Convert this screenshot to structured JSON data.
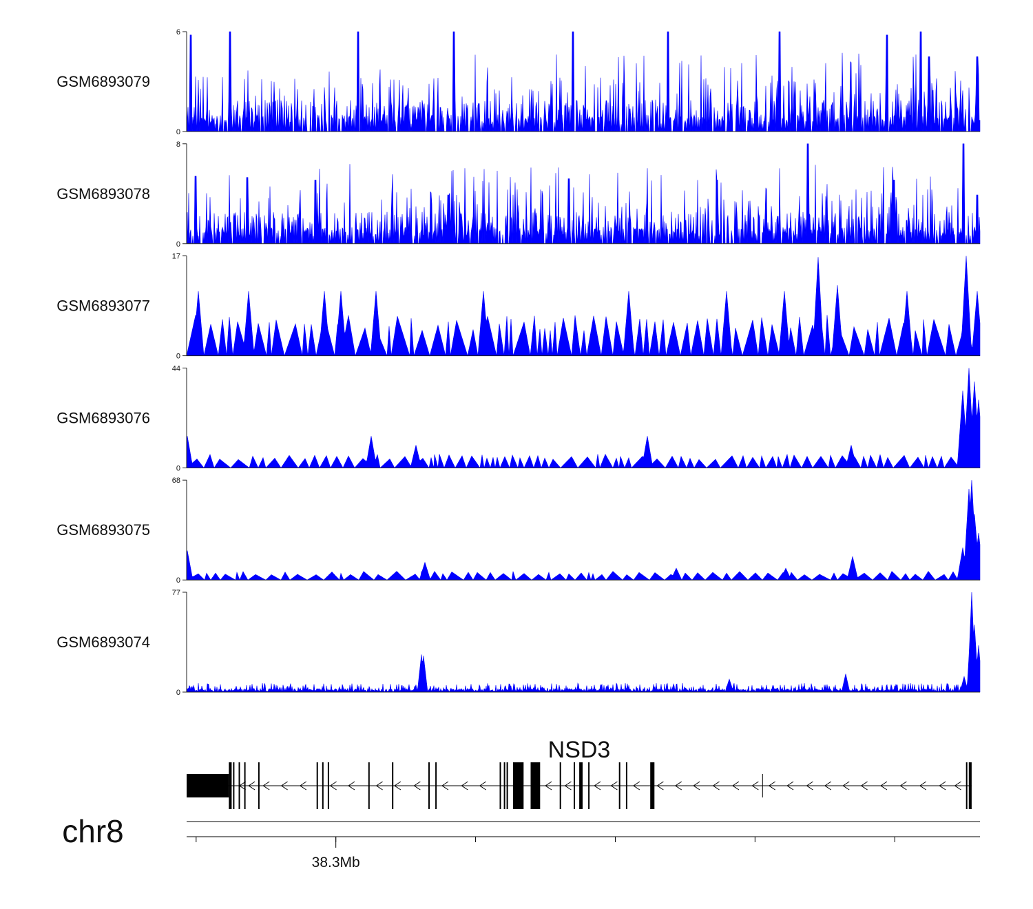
{
  "chart_data": {
    "type": "area",
    "title": "",
    "x_range_mb": [
      38.2466,
      38.5305
    ],
    "x_axis": {
      "labels": [
        {
          "value_mb": 38.3,
          "text": "38.3Mb"
        }
      ],
      "ticks_mb": [
        38.25,
        38.3,
        38.35,
        38.4,
        38.45,
        38.5
      ]
    },
    "fill_color": "#0000ff",
    "tracks": [
      {
        "name": "GSM6893079",
        "ymin_label": "0",
        "ymax_label": "6",
        "ymax": 6,
        "pattern": "noise",
        "peaks": [
          [
            38.2482,
            5.8
          ],
          [
            38.2622,
            6.0
          ],
          [
            38.3079,
            6.0
          ],
          [
            38.3421,
            6.0
          ],
          [
            38.3849,
            6.0
          ],
          [
            38.4189,
            6.0
          ],
          [
            38.4589,
            6.0
          ],
          [
            38.4972,
            5.8
          ],
          [
            38.5094,
            6.0
          ],
          [
            38.5122,
            4.5
          ],
          [
            38.5295,
            4.5
          ]
        ]
      },
      {
        "name": "GSM6893078",
        "ymin_label": "0",
        "ymax_label": "8",
        "ymax": 8,
        "pattern": "noise",
        "peaks": [
          [
            38.2499,
            5.4
          ],
          [
            38.2682,
            5.3
          ],
          [
            38.2926,
            5.1
          ],
          [
            38.3403,
            3.9
          ],
          [
            38.3833,
            5.2
          ],
          [
            38.4364,
            5.1
          ],
          [
            38.469,
            8.0
          ],
          [
            38.4996,
            5.1
          ],
          [
            38.5245,
            8.0
          ],
          [
            38.5295,
            3.9
          ]
        ]
      },
      {
        "name": "GSM6893077",
        "ymin_label": "0",
        "ymax_label": "17",
        "ymax": 17,
        "pattern": "sparse",
        "peaks": [
          [
            38.2508,
            11.0
          ],
          [
            38.2688,
            11.0
          ],
          [
            38.296,
            11.0
          ],
          [
            38.3019,
            11.0
          ],
          [
            38.3143,
            11.0
          ],
          [
            38.3527,
            11.0
          ],
          [
            38.4048,
            11.0
          ],
          [
            38.4399,
            11.0
          ],
          [
            38.4604,
            11.0
          ],
          [
            38.4727,
            16.8
          ],
          [
            38.4796,
            12.0
          ],
          [
            38.5044,
            11.0
          ],
          [
            38.5256,
            17.0
          ],
          [
            38.5294,
            11.0
          ]
        ]
      },
      {
        "name": "GSM6893076",
        "ymin_label": "0",
        "ymax_label": "44",
        "ymax": 44,
        "pattern": "sparse",
        "peaks": [
          [
            38.2468,
            14.0
          ],
          [
            38.3127,
            14.0
          ],
          [
            38.3286,
            10.0
          ],
          [
            38.4115,
            14.0
          ],
          [
            38.4844,
            10.0
          ],
          [
            38.5244,
            34.0
          ],
          [
            38.5265,
            44.0
          ],
          [
            38.5285,
            38.0
          ],
          [
            38.53,
            30.0
          ]
        ]
      },
      {
        "name": "GSM6893075",
        "ymin_label": "0",
        "ymax_label": "68",
        "ymax": 68,
        "pattern": "sparse",
        "peaks": [
          [
            38.2468,
            20.0
          ],
          [
            38.3319,
            12.0
          ],
          [
            38.4218,
            8.0
          ],
          [
            38.4611,
            8.0
          ],
          [
            38.485,
            16.0
          ],
          [
            38.5243,
            22.0
          ],
          [
            38.5266,
            62.0
          ],
          [
            38.5275,
            68.0
          ],
          [
            38.5285,
            45.0
          ],
          [
            38.53,
            32.0
          ]
        ]
      },
      {
        "name": "GSM6893074",
        "ymin_label": "0",
        "ymax_label": "77",
        "ymax": 77,
        "pattern": "quiet",
        "peaks": [
          [
            38.3306,
            29.0
          ],
          [
            38.3313,
            28.0
          ],
          [
            38.4409,
            10.0
          ],
          [
            38.4825,
            14.0
          ],
          [
            38.5248,
            12.0
          ],
          [
            38.5272,
            55.0
          ],
          [
            38.5276,
            77.0
          ],
          [
            38.5285,
            52.0
          ],
          [
            38.53,
            36.0
          ]
        ]
      }
    ],
    "gene": {
      "name": "NSD3",
      "chrom": "chr8",
      "strand": "-",
      "span_mb": [
        38.2466,
        38.5275
      ],
      "exons": [
        {
          "start_mb": 38.2466,
          "end_mb": 38.2617,
          "tall": true
        },
        {
          "start_mb": 38.2617,
          "end_mb": 38.2627,
          "tall": false
        },
        {
          "start_mb": 38.2632,
          "end_mb": 38.2637,
          "tall": false
        },
        {
          "start_mb": 38.2652,
          "end_mb": 38.2657,
          "tall": false
        },
        {
          "start_mb": 38.2672,
          "end_mb": 38.2677,
          "tall": false
        },
        {
          "start_mb": 38.2722,
          "end_mb": 38.2727,
          "tall": false
        },
        {
          "start_mb": 38.2931,
          "end_mb": 38.2936,
          "tall": false
        },
        {
          "start_mb": 38.2951,
          "end_mb": 38.2956,
          "tall": false
        },
        {
          "start_mb": 38.2971,
          "end_mb": 38.2976,
          "tall": false
        },
        {
          "start_mb": 38.3116,
          "end_mb": 38.3121,
          "tall": false
        },
        {
          "start_mb": 38.3201,
          "end_mb": 38.3206,
          "tall": false
        },
        {
          "start_mb": 38.3331,
          "end_mb": 38.3336,
          "tall": false
        },
        {
          "start_mb": 38.3356,
          "end_mb": 38.3361,
          "tall": false
        },
        {
          "start_mb": 38.3586,
          "end_mb": 38.3591,
          "tall": false
        },
        {
          "start_mb": 38.3601,
          "end_mb": 38.3606,
          "tall": false
        },
        {
          "start_mb": 38.3611,
          "end_mb": 38.3616,
          "tall": false
        },
        {
          "start_mb": 38.3634,
          "end_mb": 38.3672,
          "tall": false
        },
        {
          "start_mb": 38.3697,
          "end_mb": 38.3731,
          "tall": false
        },
        {
          "start_mb": 38.3801,
          "end_mb": 38.3806,
          "tall": false
        },
        {
          "start_mb": 38.3851,
          "end_mb": 38.3856,
          "tall": false
        },
        {
          "start_mb": 38.3871,
          "end_mb": 38.3883,
          "tall": false
        },
        {
          "start_mb": 38.3903,
          "end_mb": 38.3908,
          "tall": false
        },
        {
          "start_mb": 38.4013,
          "end_mb": 38.4018,
          "tall": false
        },
        {
          "start_mb": 38.4038,
          "end_mb": 38.4043,
          "tall": false
        },
        {
          "start_mb": 38.4125,
          "end_mb": 38.414,
          "tall": false
        },
        {
          "start_mb": 38.5255,
          "end_mb": 38.526,
          "tall": false
        },
        {
          "start_mb": 38.5265,
          "end_mb": 38.5275,
          "tall": false
        }
      ],
      "intron_arrow_mb": [
        38.2665,
        38.2698,
        38.275,
        38.2815,
        38.2882,
        38.299,
        38.3055,
        38.3155,
        38.322,
        38.329,
        38.339,
        38.346,
        38.3525,
        38.376,
        38.383,
        38.3935,
        38.3995,
        38.4075,
        38.416,
        38.4225,
        38.429,
        38.436,
        38.443,
        38.45,
        38.456,
        38.4625,
        38.4695,
        38.476,
        38.4825,
        38.489,
        38.496,
        38.503,
        38.51,
        38.517,
        38.5225
      ],
      "intron_bar_mb": [
        38.4527
      ]
    }
  }
}
